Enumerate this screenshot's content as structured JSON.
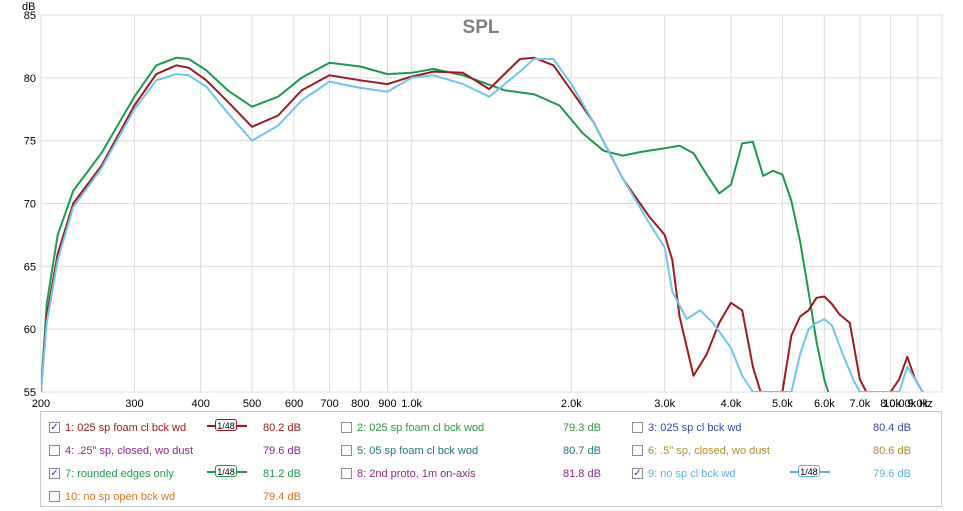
{
  "chart_data": {
    "type": "line",
    "title": "SPL",
    "ylabel": "dB",
    "xlabel_unit": "Hz",
    "xscale": "log",
    "xlim": [
      200,
      10000
    ],
    "ylim": [
      55,
      85
    ],
    "grid": true,
    "y_ticks": [
      "55",
      "60",
      "65",
      "70",
      "75",
      "80",
      "85"
    ],
    "x_ticks": [
      {
        "v": 200,
        "label": "200"
      },
      {
        "v": 300,
        "label": "300"
      },
      {
        "v": 400,
        "label": "400"
      },
      {
        "v": 500,
        "label": "500"
      },
      {
        "v": 600,
        "label": "600"
      },
      {
        "v": 700,
        "label": "700"
      },
      {
        "v": 800,
        "label": "800"
      },
      {
        "v": 900,
        "label": "900"
      },
      {
        "v": 1000,
        "label": "1.0k"
      },
      {
        "v": 2000,
        "label": "2.0k"
      },
      {
        "v": 3000,
        "label": "3.0k"
      },
      {
        "v": 4000,
        "label": "4.0k"
      },
      {
        "v": 5000,
        "label": "5.0k"
      },
      {
        "v": 6000,
        "label": "6.0k"
      },
      {
        "v": 7000,
        "label": "7.0k"
      },
      {
        "v": 8000,
        "label": "8.0k"
      },
      {
        "v": 9000,
        "label": "9.0k"
      },
      {
        "v": 10000,
        "label": "10.00k Hz"
      }
    ],
    "series": [
      {
        "name": "7: rounded edges only",
        "color": "#1a9c50",
        "x": [
          200,
          205,
          215,
          230,
          260,
          300,
          330,
          360,
          380,
          410,
          450,
          500,
          560,
          620,
          700,
          800,
          900,
          1000,
          1100,
          1250,
          1500,
          1700,
          1900,
          2100,
          2300,
          2500,
          2700,
          3000,
          3200,
          3400,
          3600,
          3800,
          4000,
          4200,
          4400,
          4600,
          4800,
          5000,
          5200,
          5400,
          5600,
          5800,
          6000,
          6100
        ],
        "y": [
          55,
          62,
          67.5,
          71,
          74,
          78.5,
          81,
          81.6,
          81.5,
          80.6,
          79,
          77.7,
          78.5,
          80,
          81.2,
          80.9,
          80.3,
          80.4,
          80.7,
          80.2,
          79,
          78.7,
          77.8,
          75.6,
          74.2,
          73.8,
          74.1,
          74.4,
          74.6,
          74,
          72.3,
          70.8,
          71.5,
          74.8,
          74.9,
          72.2,
          72.6,
          72.3,
          70.2,
          67,
          63,
          59,
          56,
          55
        ]
      },
      {
        "name": "1: 025 sp foam cl bck wd",
        "color": "#a11a1e",
        "x": [
          200,
          205,
          215,
          230,
          260,
          300,
          330,
          360,
          380,
          410,
          450,
          500,
          560,
          620,
          700,
          800,
          900,
          1000,
          1100,
          1250,
          1400,
          1600,
          1700,
          1850,
          2000,
          2200,
          2500,
          2800,
          3000,
          3100,
          3200,
          3400,
          3600,
          3800,
          4000,
          4200,
          4400,
          4550,
          4700,
          5000,
          5200,
          5400,
          5600,
          5800,
          6000,
          6200,
          6400,
          6700,
          7000,
          7200,
          7400,
          7700,
          8000,
          8300,
          8600,
          8900,
          9200
        ],
        "y": [
          55,
          61,
          66,
          70,
          73,
          77.8,
          80.3,
          81,
          80.8,
          79.8,
          78.1,
          76.1,
          77,
          79,
          80.2,
          79.8,
          79.5,
          80.1,
          80.5,
          80.4,
          79.1,
          81.5,
          81.6,
          81,
          79,
          76.5,
          72,
          69,
          67.5,
          65.5,
          61,
          56.3,
          58,
          60.5,
          62.1,
          61.5,
          57,
          55,
          55,
          55,
          59.5,
          61,
          61.5,
          62.5,
          62.6,
          62,
          61.2,
          60.5,
          56,
          55,
          55,
          55,
          55,
          56,
          57.8,
          56,
          55
        ]
      },
      {
        "name": "9: no sp cl bck wd",
        "color": "#6ec8ea",
        "x": [
          200,
          205,
          215,
          230,
          260,
          300,
          330,
          360,
          380,
          410,
          450,
          500,
          560,
          620,
          700,
          800,
          900,
          1000,
          1100,
          1250,
          1400,
          1600,
          1700,
          1850,
          2000,
          2200,
          2500,
          2800,
          3000,
          3100,
          3300,
          3500,
          3700,
          4000,
          4200,
          4400,
          4600,
          4800,
          5000,
          5200,
          5400,
          5600,
          5800,
          6000,
          6200,
          6500,
          6800,
          7000,
          7200,
          7500,
          7800,
          8000,
          8300,
          8600,
          8900,
          9200
        ],
        "y": [
          55,
          60.5,
          65.5,
          69.7,
          72.8,
          77.5,
          79.8,
          80.3,
          80.2,
          79.3,
          77.2,
          75,
          76.2,
          78.2,
          79.7,
          79.2,
          78.9,
          80,
          80.2,
          79.5,
          78.5,
          80.5,
          81.5,
          81.5,
          79.5,
          76.5,
          72,
          68.5,
          66.5,
          63,
          60.8,
          61.5,
          60.5,
          58.5,
          56.3,
          55,
          55,
          55,
          55,
          55,
          58,
          60,
          60.5,
          60.8,
          60.3,
          58,
          56,
          55,
          55,
          55,
          55,
          55,
          55,
          57,
          56,
          55
        ]
      }
    ]
  },
  "legend": {
    "items": [
      {
        "label": "1: 025 sp foam cl bck wd",
        "value": "80.2 dB",
        "checked": true,
        "color": "#a11a1e",
        "smooth": "1/48"
      },
      {
        "label": "2: 025 sp foam cl bck wod",
        "value": "79.3 dB",
        "checked": false,
        "color": "#2b9a3c"
      },
      {
        "label": "3: 025 sp cl bck wd",
        "value": "80.4 dB",
        "checked": false,
        "color": "#3b48a8"
      },
      {
        "label": "4: .25\" sp, closed, wo dust",
        "value": "79.6 dB",
        "checked": false,
        "color": "#8c2a8a"
      },
      {
        "label": "5: 05 sp foam cl bck wod",
        "value": "80.7 dB",
        "checked": false,
        "color": "#1d7b7b"
      },
      {
        "label": "6: .5\" sp, closed, wo dust",
        "value": "80.6 dB",
        "checked": false,
        "color": "#b0901a"
      },
      {
        "label": "7: rounded edges only",
        "value": "81.2 dB",
        "checked": true,
        "color": "#1a9c50",
        "smooth": "1/48"
      },
      {
        "label": "8: 2nd proto, 1m on-axis",
        "value": "81.8 dB",
        "checked": false,
        "color": "#8c2a8a"
      },
      {
        "label": "9: no sp cl bck wd",
        "value": "79.6 dB",
        "checked": true,
        "color": "#5ab6de",
        "smooth": "1/48"
      },
      {
        "label": "10: no sp open bck wd",
        "value": "79.4 dB",
        "checked": false,
        "color": "#d9761c"
      }
    ]
  }
}
